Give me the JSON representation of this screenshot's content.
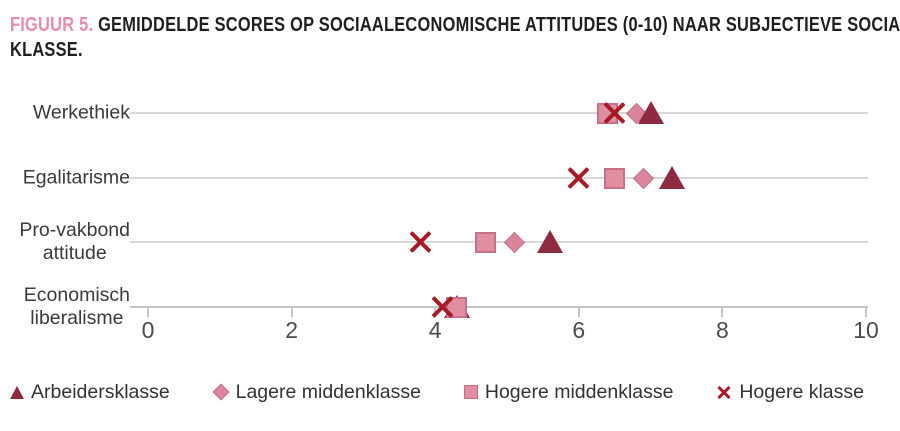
{
  "figure": {
    "label": "FIGUUR 5.",
    "title_line1": "GEMIDDELDE SCORES OP SOCIAALECONOMISCHE ATTITUDES (0-10) NAAR SUBJECTIEVE SOCIALE",
    "title_line2": "KLASSE."
  },
  "chart_data": {
    "type": "scatter",
    "title": "FIGUUR 5. GEMIDDELDE SCORES OP SOCIAALECONOMISCHE ATTITUDES (0-10) NAAR SUBJECTIEVE SOCIALE KLASSE.",
    "xlabel": "",
    "ylabel": "",
    "xlim": [
      0,
      10
    ],
    "xticks": [
      0,
      2,
      4,
      6,
      8,
      10
    ],
    "grid": "horizontal-category-lines",
    "legend_position": "bottom",
    "categories": [
      "Werkethiek",
      "Egalitarisme",
      "Pro-vakbond\nattitude",
      "Economisch\nliberalisme"
    ],
    "series": [
      {
        "name": "Arbeidersklasse",
        "marker": "triangle",
        "color": "#8e2b40",
        "border_color": "#8e2b40",
        "values": [
          7.0,
          7.3,
          5.6,
          4.3
        ]
      },
      {
        "name": "Lagere middenklasse",
        "marker": "diamond",
        "color": "#d9869d",
        "border_color": "#c96f88",
        "values": [
          6.8,
          6.9,
          5.1,
          4.3
        ]
      },
      {
        "name": "Hogere middenklasse",
        "marker": "square",
        "color": "#e08fa3",
        "border_color": "#c96f88",
        "values": [
          6.4,
          6.5,
          4.7,
          4.3
        ]
      },
      {
        "name": "Hogere klasse",
        "marker": "x",
        "color": "#a81b26",
        "border_color": "#a81b26",
        "values": [
          6.5,
          6.0,
          3.8,
          4.1
        ]
      }
    ]
  },
  "colors": {
    "figure_label": "#e98ca6",
    "title_text": "#1f1f1f",
    "grid_line": "#d8d8d8",
    "axis_line": "#c5c5c5",
    "tick_mark": "#c5c5c5",
    "tick_label": "#4c4c4c",
    "category_label": "#3b3b3b",
    "legend_label": "#333333"
  }
}
